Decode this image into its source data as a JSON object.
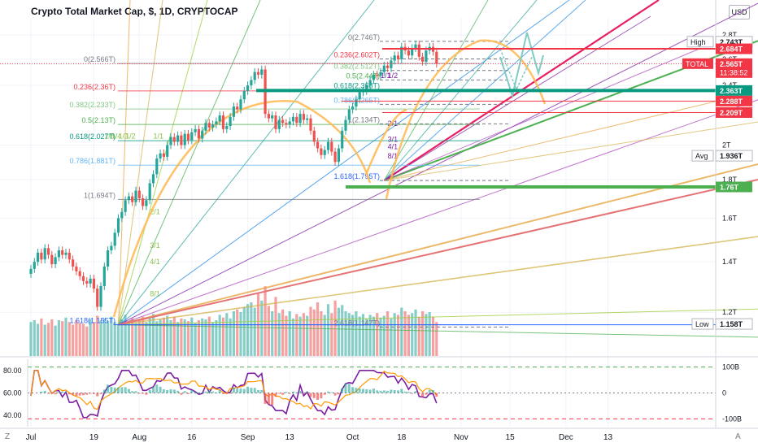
{
  "header": {
    "title": "Crypto Total Market Cap, $, 1D, CRYPTOCAP",
    "currency_button": "USD",
    "corner_left": "Z",
    "corner_right": "A"
  },
  "price_axis": {
    "labels": [
      {
        "value": 2.8,
        "text": "2.8T"
      },
      {
        "value": 2.6,
        "text": "2.6T"
      },
      {
        "value": 2.4,
        "text": "2.4T"
      },
      {
        "value": 2.0,
        "text": "2T"
      },
      {
        "value": 1.8,
        "text": "1.8T"
      },
      {
        "value": 1.6,
        "text": "1.6T"
      },
      {
        "value": 1.4,
        "text": "1.4T"
      },
      {
        "value": 1.2,
        "text": "1.2T"
      }
    ],
    "markers": [
      {
        "value": 2.743,
        "label": "High",
        "text": "2.743T",
        "style": "outline"
      },
      {
        "value": 2.684,
        "label": "",
        "text": "2.684T",
        "style": "red"
      },
      {
        "value": 2.565,
        "label": "TOTAL",
        "text": "2.565T",
        "sub": "11:38:52",
        "style": "red"
      },
      {
        "value": 2.363,
        "label": "",
        "text": "2.363T",
        "style": "teal"
      },
      {
        "value": 2.288,
        "label": "",
        "text": "2.288T",
        "style": "red"
      },
      {
        "value": 2.209,
        "label": "",
        "text": "2.209T",
        "style": "red"
      },
      {
        "value": 1.936,
        "label": "Avg",
        "text": "1.936T",
        "style": "outline"
      },
      {
        "value": 1.76,
        "label": "",
        "text": "1.76T",
        "style": "green"
      },
      {
        "value": 1.158,
        "label": "Low",
        "text": "1.158T",
        "style": "outline"
      }
    ]
  },
  "time_axis": {
    "labels": [
      {
        "day": 0,
        "text": "Jul"
      },
      {
        "day": 18,
        "text": "19"
      },
      {
        "day": 31,
        "text": "Aug"
      },
      {
        "day": 46,
        "text": "16"
      },
      {
        "day": 62,
        "text": "Sep"
      },
      {
        "day": 74,
        "text": "13"
      },
      {
        "day": 92,
        "text": "Oct"
      },
      {
        "day": 106,
        "text": "18"
      },
      {
        "day": 123,
        "text": "Nov"
      },
      {
        "day": 137,
        "text": "15"
      },
      {
        "day": 153,
        "text": "Dec"
      },
      {
        "day": 165,
        "text": "13"
      }
    ]
  },
  "fib_left": {
    "levels": [
      {
        "value": 2.566,
        "text": "0(2.566T)"
      },
      {
        "value": 2.36,
        "text": "0.236(2.36T)"
      },
      {
        "value": 2.233,
        "text": "0.382(2.233T)"
      },
      {
        "value": 2.13,
        "text": "0.5(2.13T)"
      },
      {
        "value": 2.027,
        "text": "0.618(2.027T)"
      },
      {
        "value": 1.881,
        "text": "0.786(1.881T)"
      },
      {
        "value": 1.694,
        "text": "1(1.694T)"
      },
      {
        "value": 1.155,
        "text": "1.618(1.155T)"
      }
    ]
  },
  "fib_right": {
    "levels": [
      {
        "value": 2.746,
        "text": "0(2.746T)"
      },
      {
        "value": 2.602,
        "text": "0.236(2.602T)"
      },
      {
        "value": 2.512,
        "text": "0.382(2.512T)"
      },
      {
        "value": 2.44,
        "text": "0.5(2.44T)"
      },
      {
        "value": 2.368,
        "text": "0.618(2.368T)"
      },
      {
        "value": 2.265,
        "text": "0.786(2.265T)"
      },
      {
        "value": 2.134,
        "text": "1(2.134T)"
      },
      {
        "value": 1.795,
        "text": "1.618(1.795T)"
      },
      {
        "value": 1.147,
        "text": "2.618(1.147T)"
      }
    ]
  },
  "gann_labels": {
    "left": [
      {
        "text": "1/8",
        "value": 2.04,
        "day": 21
      },
      {
        "text": "1/4",
        "value": 2.04,
        "day": 23
      },
      {
        "text": "1/3",
        "value": 2.04,
        "day": 25
      },
      {
        "text": "1/2",
        "value": 2.04,
        "day": 27
      },
      {
        "text": "1/1",
        "value": 2.04,
        "day": 35
      },
      {
        "text": "2/1",
        "value": 1.62,
        "day": 34
      },
      {
        "text": "3/1",
        "value": 1.46,
        "day": 34
      },
      {
        "text": "4/1",
        "value": 1.39,
        "day": 34
      },
      {
        "text": "8/1",
        "value": 1.26,
        "day": 34
      }
    ],
    "right": [
      {
        "text": "1/1",
        "value": 2.455,
        "day": 100
      },
      {
        "text": "1/2",
        "value": 2.455,
        "day": 102
      },
      {
        "text": "2/1",
        "value": 2.12,
        "day": 102
      },
      {
        "text": "3/1",
        "value": 2.02,
        "day": 102
      },
      {
        "text": "4/1",
        "value": 1.975,
        "day": 102
      },
      {
        "text": "8/1",
        "value": 1.92,
        "day": 102
      }
    ]
  },
  "indicator": {
    "left_labels": [
      {
        "value": 80,
        "text": "80.00"
      },
      {
        "value": 60,
        "text": "60.00"
      },
      {
        "value": 40,
        "text": "40.00"
      }
    ],
    "right_labels": [
      {
        "value": 100,
        "text": "100B"
      },
      {
        "value": 0,
        "text": "0"
      },
      {
        "value": -100,
        "text": "-100B"
      }
    ]
  },
  "chart_data": {
    "type": "candlestick",
    "title": "Crypto Total Market Cap, $, 1D, CRYPTOCAP",
    "ylabel": "",
    "ylim_trillions": [
      1.05,
      2.95
    ],
    "candles_trillions": {
      "start": "2021-07-01",
      "closes": [
        1.37,
        1.4,
        1.44,
        1.41,
        1.46,
        1.43,
        1.39,
        1.42,
        1.45,
        1.43,
        1.44,
        1.41,
        1.38,
        1.36,
        1.34,
        1.32,
        1.31,
        1.33,
        1.29,
        1.22,
        1.3,
        1.38,
        1.45,
        1.47,
        1.53,
        1.6,
        1.63,
        1.69,
        1.71,
        1.68,
        1.74,
        1.7,
        1.66,
        1.69,
        1.78,
        1.83,
        1.92,
        1.95,
        1.93,
        2.0,
        2.05,
        2.02,
        2.06,
        2.0,
        2.07,
        2.03,
        2.08,
        2.1,
        2.04,
        2.09,
        2.14,
        2.11,
        2.13,
        2.15,
        2.19,
        2.1,
        2.12,
        2.18,
        2.25,
        2.23,
        2.3,
        2.36,
        2.4,
        2.44,
        2.5,
        2.48,
        2.52,
        2.2,
        2.17,
        2.19,
        2.1,
        2.16,
        2.14,
        2.13,
        2.15,
        2.18,
        2.14,
        2.2,
        2.16,
        2.17,
        2.09,
        2.02,
        1.98,
        1.94,
        1.97,
        2.02,
        1.96,
        1.9,
        1.98,
        2.09,
        2.16,
        2.23,
        2.25,
        2.3,
        2.35,
        2.36,
        2.4,
        2.44,
        2.48,
        2.47,
        2.5,
        2.55,
        2.53,
        2.59,
        2.63,
        2.6,
        2.7,
        2.67,
        2.63,
        2.69,
        2.72,
        2.62,
        2.58,
        2.67,
        2.7,
        2.66,
        2.565
      ]
    },
    "volume_relative": [
      0.38,
      0.4,
      0.36,
      0.42,
      0.35,
      0.37,
      0.41,
      0.34,
      0.4,
      0.39,
      0.43,
      0.38,
      0.35,
      0.4,
      0.37,
      0.36,
      0.33,
      0.41,
      0.38,
      0.45,
      0.4,
      0.42,
      0.39,
      0.44,
      0.38,
      0.36,
      0.41,
      0.46,
      0.39,
      0.42,
      0.37,
      0.4,
      0.44,
      0.38,
      0.42,
      0.47,
      0.39,
      0.41,
      0.43,
      0.45,
      0.4,
      0.44,
      0.38,
      0.42,
      0.41,
      0.39,
      0.43,
      0.37,
      0.4,
      0.42,
      0.41,
      0.44,
      0.38,
      0.4,
      0.46,
      0.43,
      0.48,
      0.42,
      0.5,
      0.52,
      0.49,
      0.55,
      0.58,
      0.6,
      0.54,
      0.7,
      0.62,
      0.78,
      0.56,
      0.5,
      0.66,
      0.48,
      0.52,
      0.45,
      0.5,
      0.42,
      0.47,
      0.44,
      0.48,
      0.45,
      0.55,
      0.52,
      0.6,
      0.5,
      0.46,
      0.58,
      0.48,
      0.62,
      0.54,
      0.57,
      0.5,
      0.48,
      0.46,
      0.5,
      0.44,
      0.47,
      0.42,
      0.46,
      0.44,
      0.48,
      0.43,
      0.45,
      0.5,
      0.42,
      0.48,
      0.46,
      0.54,
      0.5,
      0.46,
      0.48,
      0.52,
      0.44,
      0.5,
      0.47,
      0.49,
      0.44,
      0.38
    ]
  }
}
